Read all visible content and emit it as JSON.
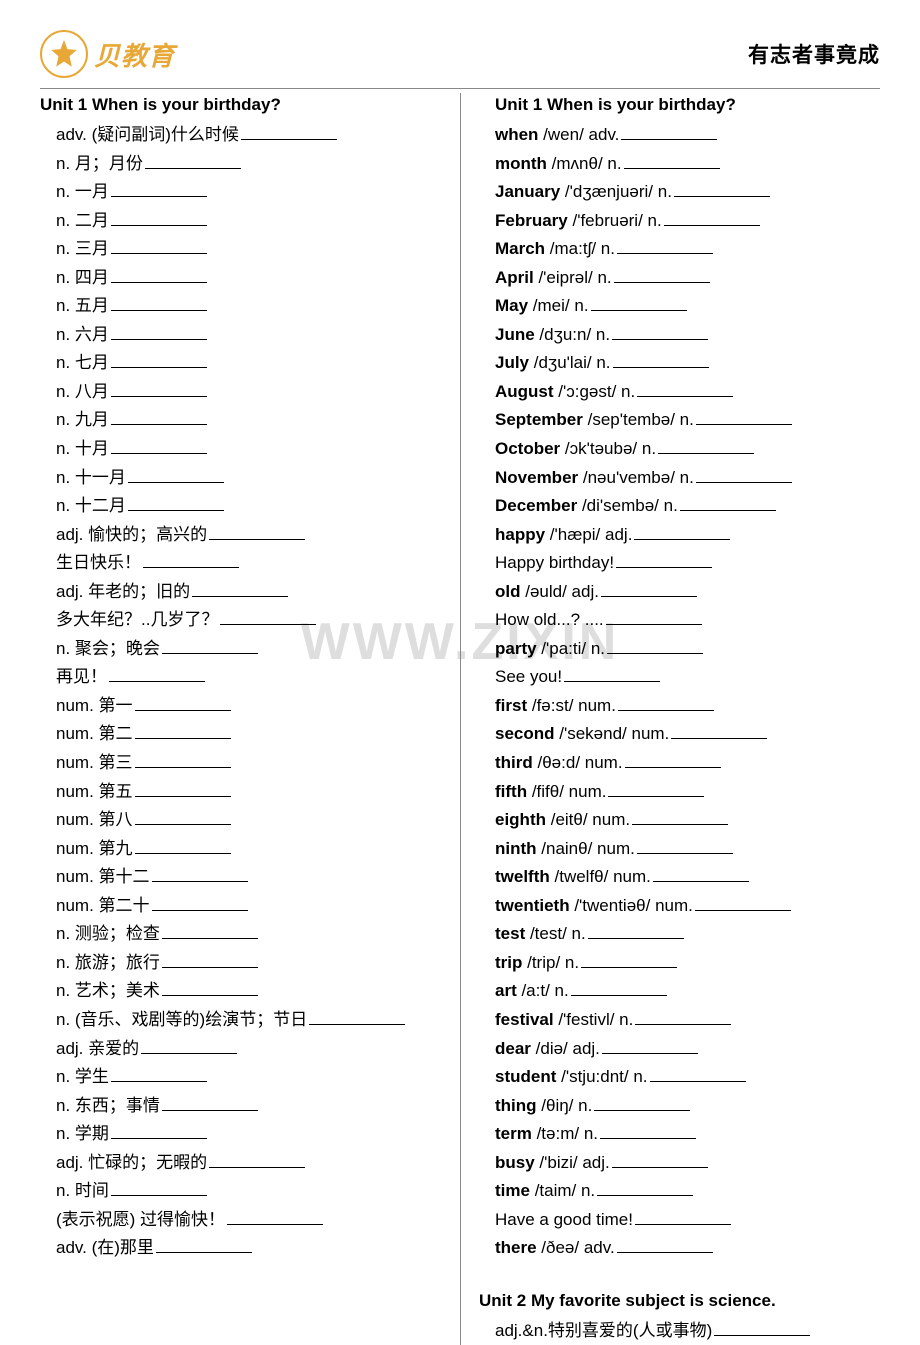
{
  "header": {
    "logo_cn": "贝教育",
    "motto": "有志者事竟成"
  },
  "watermark": "WWW.ZIXIN",
  "left": {
    "unit_title": "Unit 1   When is your birthday?",
    "items": [
      "adv. (疑问副词)什么时候",
      "n. 月；月份",
      "n. 一月",
      "n. 二月",
      "n. 三月",
      "n. 四月",
      "n. 五月",
      "n. 六月",
      "n. 七月",
      "n. 八月",
      "n. 九月",
      "n. 十月",
      "n. 十一月",
      "n. 十二月",
      "adj. 愉快的；高兴的",
      "生日快乐！",
      "adj. 年老的；旧的",
      "多大年纪？..几岁了？",
      "n. 聚会；晚会",
      "再见！",
      "num. 第一",
      "num. 第二",
      "num. 第三",
      "num. 第五",
      "num. 第八",
      "num. 第九",
      "num. 第十二",
      "num. 第二十",
      "n. 测验；检查",
      "n. 旅游；旅行",
      "n. 艺术；美术",
      "n. (音乐、戏剧等的)绘演节；节日",
      "adj. 亲爱的",
      "n. 学生",
      "n. 东西；事情",
      "n. 学期",
      "adj. 忙碌的；无暇的",
      "n. 时间",
      "(表示祝愿)  过得愉快！",
      "adv. (在)那里"
    ]
  },
  "right": {
    "unit_title": "Unit 1   When is your birthday?",
    "items": [
      {
        "b": "when",
        "t": " /wen/ adv. "
      },
      {
        "b": "month",
        "t": " /mʌnθ/ n. "
      },
      {
        "b": "January",
        "t": " /'dʒænjuəri/ n. "
      },
      {
        "b": "February",
        "t": " /'februəri/ n. "
      },
      {
        "b": "March",
        "t": " /ma:tʃ/ n. "
      },
      {
        "b": "April",
        "t": " /'eiprəl/ n. "
      },
      {
        "b": "May",
        "t": " /mei/ n. "
      },
      {
        "b": "June",
        "t": " /dʒu:n/ n. "
      },
      {
        "b": "July",
        "t": " /dʒu'lai/ n. "
      },
      {
        "b": "August",
        "t": " /'ɔ:gəst/ n. "
      },
      {
        "b": "September",
        "t": " /sep'tembə/ n. "
      },
      {
        "b": "October",
        "t": " /ɔk'təubə/ n. "
      },
      {
        "b": "November",
        "t": " /nəu'vembə/ n. "
      },
      {
        "b": "December",
        "t": " /di'sembə/ n."
      },
      {
        "b": "happy",
        "t": " /'hæpi/ adj. "
      },
      {
        "b": "",
        "t": "Happy birthday! "
      },
      {
        "b": "old",
        "t": " /əuld/ adj. "
      },
      {
        "b": "",
        "t": "How old...? ...."
      },
      {
        "b": "party",
        "t": " /'pa:ti/ n."
      },
      {
        "b": "",
        "t": "See you! "
      },
      {
        "b": "first",
        "t": " /fə:st/ num."
      },
      {
        "b": "second",
        "t": " /'sekənd/ num. "
      },
      {
        "b": "third",
        "t": " /θə:d/ num. "
      },
      {
        "b": "fifth",
        "t": " /fifθ/ num. "
      },
      {
        "b": "eighth",
        "t": " /eitθ/ num."
      },
      {
        "b": "ninth",
        "t": " /nainθ/ num. "
      },
      {
        "b": "twelfth",
        "t": " /twelfθ/ num."
      },
      {
        "b": "twentieth",
        "t": " /'twentiəθ/ num."
      },
      {
        "b": "test",
        "t": " /test/ n."
      },
      {
        "b": "trip",
        "t": " /trip/ n. "
      },
      {
        "b": "art",
        "t": " /a:t/ n. "
      },
      {
        "b": "festival",
        "t": " /'festivl/ n."
      },
      {
        "b": "dear",
        "t": " /diə/ adj. "
      },
      {
        "b": "student",
        "t": " /'stju:dnt/ n. "
      },
      {
        "b": "thing",
        "t": " /θiŋ/ n. "
      },
      {
        "b": "term",
        "t": " /tə:m/ n. "
      },
      {
        "b": "busy",
        "t": " /'bizi/ adj. "
      },
      {
        "b": "time",
        "t": " /taim/ n. "
      },
      {
        "b": "",
        "t": "Have a good time! "
      },
      {
        "b": "there",
        "t": " /ðeə/ adv. "
      }
    ],
    "unit2_title": "Unit 2   My favorite subject is science.",
    "unit2_items": [
      "adj.&n.特别喜爱的(人或事物)"
    ]
  },
  "colors": {
    "logo": "#e8a838",
    "text": "#000000",
    "line": "#888888",
    "watermark": "#dedede",
    "bg": "#ffffff"
  },
  "typography": {
    "body_fontsize": 17,
    "title_fontsize": 17,
    "motto_fontsize": 21,
    "logo_fontsize": 26,
    "watermark_fontsize": 52
  }
}
